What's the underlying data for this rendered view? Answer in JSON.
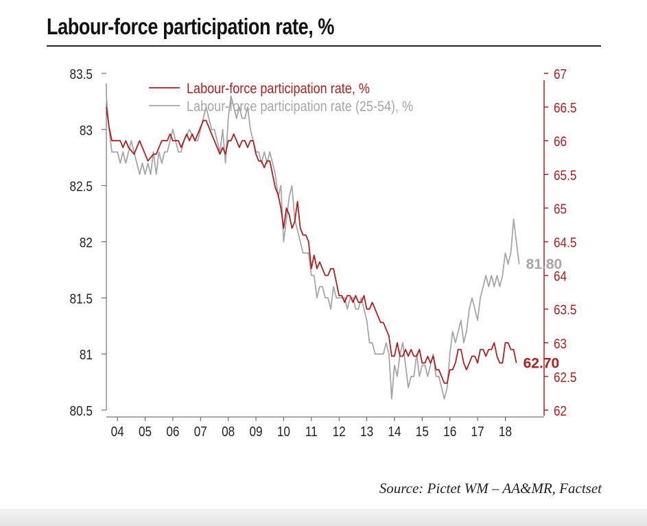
{
  "title": "Labour-force participation rate, %",
  "source": "Source: Pictet WM – AA&MR, Factset",
  "colors": {
    "primary": "#b01e1e",
    "secondary": "#a6a6a6",
    "axis": "#555555"
  },
  "chart_data": {
    "type": "line",
    "x_tick_labels": [
      "04",
      "05",
      "06",
      "07",
      "08",
      "09",
      "10",
      "11",
      "12",
      "13",
      "14",
      "15",
      "16",
      "17",
      "18"
    ],
    "x_range": [
      2003.6,
      2019.4
    ],
    "y_left": {
      "range": [
        80.5,
        83.5
      ],
      "ticks": [
        "80.5",
        "81",
        "81.5",
        "82",
        "82.5",
        "83",
        "83.5"
      ]
    },
    "y_right": {
      "range": [
        62,
        67
      ],
      "ticks": [
        "62",
        "62.5",
        "63",
        "63.5",
        "64",
        "64.5",
        "65",
        "65.5",
        "66",
        "66.5",
        "67"
      ],
      "color": "#b01e1e"
    },
    "legend_position": "top-left",
    "grid": false,
    "series": [
      {
        "name": "Labour-force participation rate, %",
        "axis": "right",
        "color": "#b01e1e",
        "end_label": "62.70",
        "points": [
          [
            2003.6,
            66.5
          ],
          [
            2003.7,
            66.2
          ],
          [
            2003.8,
            66.0
          ],
          [
            2004.0,
            66.0
          ],
          [
            2004.1,
            66.0
          ],
          [
            2004.2,
            65.9
          ],
          [
            2004.3,
            66.0
          ],
          [
            2004.4,
            65.9
          ],
          [
            2004.6,
            65.8
          ],
          [
            2004.7,
            65.9
          ],
          [
            2004.8,
            66.0
          ],
          [
            2004.9,
            65.9
          ],
          [
            2005.0,
            65.8
          ],
          [
            2005.1,
            65.7
          ],
          [
            2005.3,
            65.8
          ],
          [
            2005.4,
            65.8
          ],
          [
            2005.6,
            66.0
          ],
          [
            2005.7,
            66.0
          ],
          [
            2005.8,
            66.0
          ],
          [
            2005.9,
            66.1
          ],
          [
            2006.0,
            66.0
          ],
          [
            2006.2,
            66.0
          ],
          [
            2006.3,
            65.9
          ],
          [
            2006.4,
            66.0
          ],
          [
            2006.5,
            66.1
          ],
          [
            2006.6,
            66.0
          ],
          [
            2006.7,
            66.1
          ],
          [
            2006.8,
            66.0
          ],
          [
            2006.9,
            66.1
          ],
          [
            2007.0,
            66.2
          ],
          [
            2007.1,
            66.3
          ],
          [
            2007.2,
            66.3
          ],
          [
            2007.3,
            66.2
          ],
          [
            2007.4,
            66.1
          ],
          [
            2007.5,
            66.0
          ],
          [
            2007.6,
            65.9
          ],
          [
            2007.7,
            65.8
          ],
          [
            2007.8,
            65.9
          ],
          [
            2007.9,
            65.8
          ],
          [
            2008.0,
            66.0
          ],
          [
            2008.1,
            66.0
          ],
          [
            2008.2,
            66.1
          ],
          [
            2008.3,
            66.0
          ],
          [
            2008.4,
            65.9
          ],
          [
            2008.5,
            66.0
          ],
          [
            2008.6,
            66.0
          ],
          [
            2008.7,
            65.9
          ],
          [
            2008.8,
            66.0
          ],
          [
            2008.9,
            66.0
          ],
          [
            2009.0,
            65.8
          ],
          [
            2009.1,
            65.7
          ],
          [
            2009.2,
            65.7
          ],
          [
            2009.3,
            65.6
          ],
          [
            2009.4,
            65.7
          ],
          [
            2009.5,
            65.7
          ],
          [
            2009.6,
            65.5
          ],
          [
            2009.7,
            65.3
          ],
          [
            2009.8,
            65.2
          ],
          [
            2009.9,
            65.0
          ],
          [
            2010.0,
            64.7
          ],
          [
            2010.1,
            65.0
          ],
          [
            2010.2,
            64.9
          ],
          [
            2010.3,
            64.7
          ],
          [
            2010.4,
            64.8
          ],
          [
            2010.5,
            65.1
          ],
          [
            2010.6,
            64.7
          ],
          [
            2010.7,
            64.6
          ],
          [
            2010.8,
            64.6
          ],
          [
            2010.9,
            64.5
          ],
          [
            2011.0,
            64.1
          ],
          [
            2011.1,
            64.3
          ],
          [
            2011.2,
            64.1
          ],
          [
            2011.3,
            64.2
          ],
          [
            2011.4,
            64.1
          ],
          [
            2011.5,
            64.0
          ],
          [
            2011.6,
            64.0
          ],
          [
            2011.7,
            64.1
          ],
          [
            2011.8,
            64.1
          ],
          [
            2011.9,
            63.9
          ],
          [
            2012.0,
            63.7
          ],
          [
            2012.1,
            63.7
          ],
          [
            2012.2,
            63.6
          ],
          [
            2012.3,
            63.7
          ],
          [
            2012.4,
            63.7
          ],
          [
            2012.5,
            63.6
          ],
          [
            2012.6,
            63.7
          ],
          [
            2012.7,
            63.6
          ],
          [
            2012.8,
            63.6
          ],
          [
            2012.9,
            63.7
          ],
          [
            2013.0,
            63.5
          ],
          [
            2013.1,
            63.5
          ],
          [
            2013.2,
            63.6
          ],
          [
            2013.3,
            63.5
          ],
          [
            2013.4,
            63.4
          ],
          [
            2013.5,
            63.3
          ],
          [
            2013.6,
            63.3
          ],
          [
            2013.7,
            63.2
          ],
          [
            2013.8,
            63.1
          ],
          [
            2013.9,
            62.8
          ],
          [
            2014.0,
            62.8
          ],
          [
            2014.1,
            63.0
          ],
          [
            2014.2,
            62.8
          ],
          [
            2014.3,
            62.8
          ],
          [
            2014.4,
            62.9
          ],
          [
            2014.5,
            62.8
          ],
          [
            2014.6,
            62.9
          ],
          [
            2014.7,
            62.8
          ],
          [
            2014.8,
            62.8
          ],
          [
            2014.9,
            62.9
          ],
          [
            2015.0,
            62.7
          ],
          [
            2015.1,
            62.7
          ],
          [
            2015.2,
            62.8
          ],
          [
            2015.3,
            62.7
          ],
          [
            2015.4,
            62.8
          ],
          [
            2015.5,
            62.6
          ],
          [
            2015.6,
            62.6
          ],
          [
            2015.7,
            62.5
          ],
          [
            2015.8,
            62.4
          ],
          [
            2015.9,
            62.4
          ],
          [
            2016.0,
            62.6
          ],
          [
            2016.1,
            62.6
          ],
          [
            2016.2,
            62.7
          ],
          [
            2016.3,
            62.9
          ],
          [
            2016.4,
            62.9
          ],
          [
            2016.5,
            62.7
          ],
          [
            2016.6,
            62.6
          ],
          [
            2016.7,
            62.7
          ],
          [
            2016.8,
            62.8
          ],
          [
            2016.9,
            62.8
          ],
          [
            2017.0,
            62.7
          ],
          [
            2017.1,
            62.9
          ],
          [
            2017.2,
            62.9
          ],
          [
            2017.3,
            62.8
          ],
          [
            2017.4,
            62.9
          ],
          [
            2017.5,
            62.9
          ],
          [
            2017.6,
            63.0
          ],
          [
            2017.7,
            62.8
          ],
          [
            2017.8,
            62.7
          ],
          [
            2017.9,
            62.7
          ],
          [
            2018.0,
            63.0
          ],
          [
            2018.1,
            63.0
          ],
          [
            2018.2,
            62.9
          ],
          [
            2018.3,
            62.9
          ],
          [
            2018.4,
            62.7
          ]
        ]
      },
      {
        "name": "Labour-force participation rate (25-54), %",
        "axis": "left",
        "color": "#a6a6a6",
        "end_label": "81.80",
        "points": [
          [
            2003.6,
            83.3
          ],
          [
            2003.7,
            83.0
          ],
          [
            2003.8,
            82.8
          ],
          [
            2004.0,
            82.8
          ],
          [
            2004.1,
            82.7
          ],
          [
            2004.2,
            82.8
          ],
          [
            2004.3,
            82.7
          ],
          [
            2004.4,
            82.8
          ],
          [
            2004.5,
            82.9
          ],
          [
            2004.6,
            82.8
          ],
          [
            2004.8,
            82.6
          ],
          [
            2004.9,
            82.7
          ],
          [
            2005.0,
            82.6
          ],
          [
            2005.1,
            82.7
          ],
          [
            2005.2,
            82.6
          ],
          [
            2005.3,
            82.8
          ],
          [
            2005.4,
            82.6
          ],
          [
            2005.5,
            82.8
          ],
          [
            2005.6,
            82.7
          ],
          [
            2005.7,
            82.8
          ],
          [
            2005.8,
            82.8
          ],
          [
            2006.0,
            83.0
          ],
          [
            2006.1,
            82.9
          ],
          [
            2006.2,
            82.8
          ],
          [
            2006.3,
            82.8
          ],
          [
            2006.4,
            82.9
          ],
          [
            2006.6,
            83.0
          ],
          [
            2006.8,
            82.9
          ],
          [
            2006.9,
            82.9
          ],
          [
            2007.0,
            83.0
          ],
          [
            2007.1,
            83.1
          ],
          [
            2007.2,
            83.2
          ],
          [
            2007.3,
            83.1
          ],
          [
            2007.4,
            83.0
          ],
          [
            2007.5,
            83.0
          ],
          [
            2007.6,
            82.9
          ],
          [
            2007.7,
            82.8
          ],
          [
            2007.8,
            83.0
          ],
          [
            2007.9,
            82.7
          ],
          [
            2008.0,
            83.1
          ],
          [
            2008.1,
            83.3
          ],
          [
            2008.2,
            83.2
          ],
          [
            2008.3,
            83.1
          ],
          [
            2008.4,
            83.2
          ],
          [
            2008.5,
            83.1
          ],
          [
            2008.6,
            83.1
          ],
          [
            2008.7,
            83.2
          ],
          [
            2008.8,
            83.0
          ],
          [
            2008.9,
            82.9
          ],
          [
            2009.0,
            82.8
          ],
          [
            2009.1,
            82.8
          ],
          [
            2009.2,
            82.7
          ],
          [
            2009.3,
            82.8
          ],
          [
            2009.4,
            82.7
          ],
          [
            2009.5,
            82.8
          ],
          [
            2009.6,
            82.7
          ],
          [
            2009.7,
            82.6
          ],
          [
            2009.8,
            82.4
          ],
          [
            2009.9,
            82.5
          ],
          [
            2010.0,
            82.0
          ],
          [
            2010.1,
            82.2
          ],
          [
            2010.2,
            82.4
          ],
          [
            2010.3,
            82.5
          ],
          [
            2010.4,
            82.2
          ],
          [
            2010.5,
            82.1
          ],
          [
            2010.6,
            82.0
          ],
          [
            2010.7,
            81.9
          ],
          [
            2010.8,
            81.9
          ],
          [
            2010.9,
            81.9
          ],
          [
            2011.0,
            81.7
          ],
          [
            2011.1,
            81.7
          ],
          [
            2011.2,
            81.5
          ],
          [
            2011.3,
            81.6
          ],
          [
            2011.4,
            81.6
          ],
          [
            2011.5,
            81.5
          ],
          [
            2011.6,
            81.5
          ],
          [
            2011.7,
            81.4
          ],
          [
            2011.8,
            81.6
          ],
          [
            2011.9,
            81.5
          ],
          [
            2012.0,
            81.5
          ],
          [
            2012.1,
            81.5
          ],
          [
            2012.2,
            81.5
          ],
          [
            2012.3,
            81.4
          ],
          [
            2012.4,
            81.5
          ],
          [
            2012.5,
            81.5
          ],
          [
            2012.6,
            81.4
          ],
          [
            2012.7,
            81.4
          ],
          [
            2012.8,
            81.5
          ],
          [
            2012.9,
            81.4
          ],
          [
            2013.0,
            81.3
          ],
          [
            2013.1,
            81.1
          ],
          [
            2013.2,
            81.1
          ],
          [
            2013.3,
            81.0
          ],
          [
            2013.4,
            81.0
          ],
          [
            2013.5,
            81.0
          ],
          [
            2013.6,
            81.0
          ],
          [
            2013.7,
            81.1
          ],
          [
            2013.8,
            81.0
          ],
          [
            2013.9,
            80.6
          ],
          [
            2014.0,
            80.9
          ],
          [
            2014.1,
            80.8
          ],
          [
            2014.2,
            81.0
          ],
          [
            2014.3,
            81.1
          ],
          [
            2014.4,
            80.9
          ],
          [
            2014.5,
            80.7
          ],
          [
            2014.6,
            80.8
          ],
          [
            2014.7,
            80.8
          ],
          [
            2014.8,
            81.0
          ],
          [
            2014.9,
            80.8
          ],
          [
            2015.0,
            80.9
          ],
          [
            2015.1,
            80.9
          ],
          [
            2015.2,
            80.8
          ],
          [
            2015.3,
            80.9
          ],
          [
            2015.4,
            81.0
          ],
          [
            2015.5,
            80.8
          ],
          [
            2015.6,
            80.8
          ],
          [
            2015.7,
            80.7
          ],
          [
            2015.8,
            80.6
          ],
          [
            2015.9,
            80.7
          ],
          [
            2016.0,
            81.0
          ],
          [
            2016.1,
            81.2
          ],
          [
            2016.2,
            81.1
          ],
          [
            2016.3,
            81.2
          ],
          [
            2016.4,
            81.3
          ],
          [
            2016.5,
            81.1
          ],
          [
            2016.6,
            81.2
          ],
          [
            2016.7,
            81.4
          ],
          [
            2016.8,
            81.5
          ],
          [
            2016.9,
            81.4
          ],
          [
            2017.0,
            81.3
          ],
          [
            2017.1,
            81.5
          ],
          [
            2017.2,
            81.6
          ],
          [
            2017.3,
            81.7
          ],
          [
            2017.4,
            81.6
          ],
          [
            2017.5,
            81.7
          ],
          [
            2017.6,
            81.6
          ],
          [
            2017.7,
            81.7
          ],
          [
            2017.8,
            81.6
          ],
          [
            2017.9,
            81.7
          ],
          [
            2018.0,
            81.9
          ],
          [
            2018.1,
            81.8
          ],
          [
            2018.2,
            81.9
          ],
          [
            2018.3,
            82.2
          ],
          [
            2018.4,
            82.0
          ],
          [
            2018.5,
            81.8
          ]
        ]
      }
    ]
  }
}
